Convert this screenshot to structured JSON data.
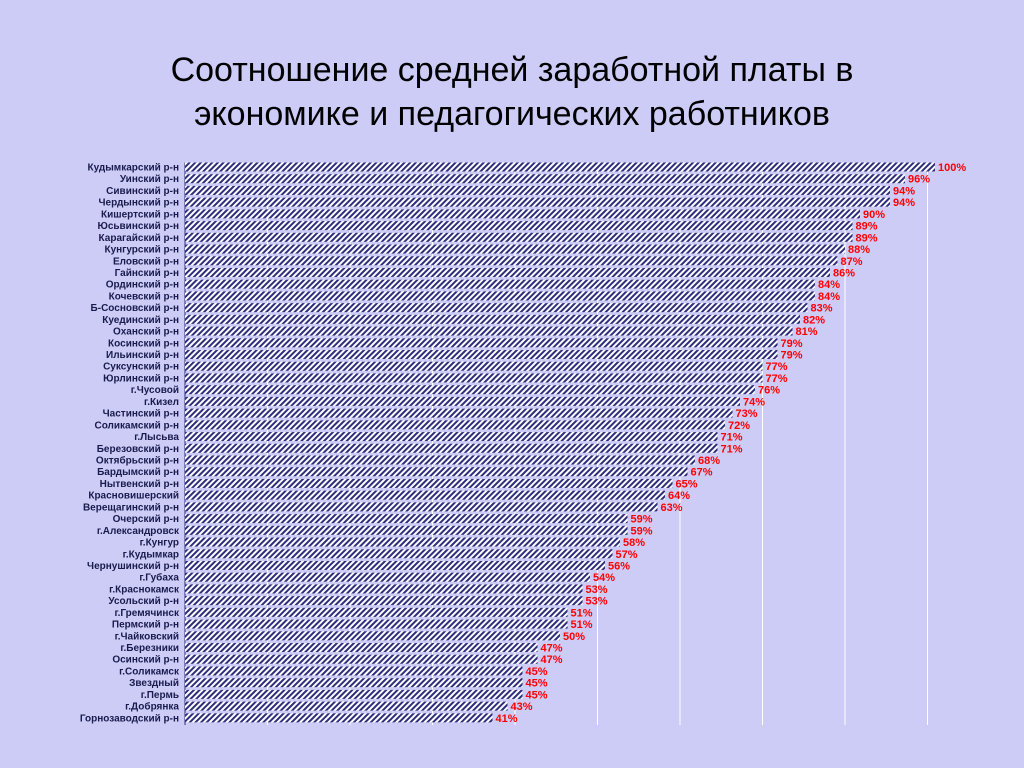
{
  "title_line1": "Соотношение средней заработной платы в",
  "title_line2": "экономике и педагогических работников",
  "colors": {
    "background": "#ccccf7",
    "bar_fill": "#ffffff",
    "bar_stripe": "#2e2e7a",
    "value_label": "#ff0000",
    "category_label": "#1a1a4d"
  },
  "chart_data": {
    "type": "bar",
    "orientation": "horizontal",
    "title": "Соотношение средней заработной платы в экономике и педагогических работников",
    "value_suffix": "%",
    "xlim": [
      0,
      100
    ],
    "grid": true,
    "categories": [
      "Кудымкарский р-н",
      "Уинский р-н",
      "Сивинский р-н",
      "Чердынский р-н",
      "Кишертский р-н",
      "Юсьвинский р-н",
      "Карагайский р-н",
      "Кунгурский р-н",
      "Еловский р-н",
      "Гайнский р-н",
      "Ординский р-н",
      "Кочевский р-н",
      "Б-Сосновский р-н",
      "Куединский р-н",
      "Оханский р-н",
      "Косинский р-н",
      "Ильинский р-н",
      "Суксунский р-н",
      "Юрлинский р-н",
      "г.Чусовой",
      "г.Кизел",
      "Частинский р-н",
      "Соликамский р-н",
      "г.Лысьва",
      "Березовский р-н",
      "Октябрьский р-н",
      "Бардымский р-н",
      "Нытвенский р-н",
      "Красновишерский",
      "Верещагинский р-н",
      "Очерский р-н",
      "г.Александровск",
      "г.Кунгур",
      "г.Кудымкар",
      "Чернушинский р-н",
      "г.Губаха",
      "г.Краснокамск",
      "Усольский р-н",
      "г.Гремячинск",
      "Пермский р-н",
      "г.Чайковский",
      "г.Березники",
      "Осинский р-н",
      "г.Соликамск",
      "Звездный",
      "г.Пермь",
      "г.Добрянка",
      "Горнозаводский р-н"
    ],
    "values": [
      100,
      96,
      94,
      94,
      90,
      89,
      89,
      88,
      87,
      86,
      84,
      84,
      83,
      82,
      81,
      79,
      79,
      77,
      77,
      76,
      74,
      73,
      72,
      71,
      71,
      68,
      67,
      65,
      64,
      63,
      59,
      59,
      58,
      57,
      56,
      54,
      53,
      53,
      51,
      51,
      50,
      47,
      47,
      45,
      45,
      45,
      43,
      41
    ]
  }
}
